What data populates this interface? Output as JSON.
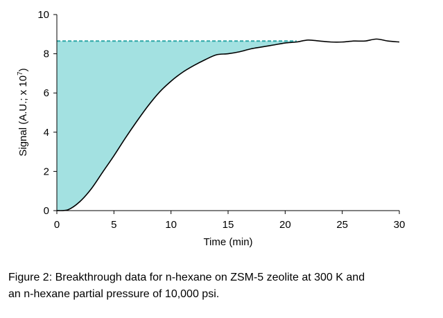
{
  "chart_data": {
    "type": "line",
    "xlabel": "Time (min)",
    "ylabel_text": "Signal (A.U.; x 10",
    "ylabel_superscript": "7",
    "ylabel_close": ")",
    "xlim": [
      0,
      30
    ],
    "ylim": [
      0,
      10
    ],
    "x_ticks": [
      "0",
      "5",
      "10",
      "15",
      "20",
      "25",
      "30"
    ],
    "y_ticks": [
      "0",
      "2",
      "4",
      "6",
      "8",
      "10"
    ],
    "grid": false,
    "legend": "none",
    "series": [
      {
        "x": [
          0,
          1,
          2,
          3,
          4,
          5,
          6,
          7,
          8,
          9,
          10,
          11,
          12,
          13,
          14,
          15,
          16,
          17,
          18,
          19,
          20,
          21,
          22,
          23,
          24,
          25,
          26,
          27,
          28,
          29,
          30
        ],
        "values": [
          0,
          0.05,
          0.45,
          1.1,
          1.95,
          2.8,
          3.7,
          4.55,
          5.35,
          6.05,
          6.6,
          7.05,
          7.4,
          7.7,
          7.95,
          8.0,
          8.1,
          8.25,
          8.35,
          8.45,
          8.55,
          8.6,
          8.7,
          8.65,
          8.6,
          8.6,
          8.65,
          8.65,
          8.75,
          8.65,
          8.6
        ]
      }
    ],
    "reference_line": {
      "y": 8.65,
      "x_start": 0,
      "x_end": 21
    },
    "colors": {
      "line": "#000000",
      "fill": "#a3e1e1",
      "dashed": "#2aa6a6",
      "axis": "#000000"
    }
  },
  "caption": {
    "line1": "Figure 2: Breakthrough data for n-hexane on ZSM-5 zeolite at 300 K and",
    "line2": "an n-hexane partial pressure of 10,000 psi."
  }
}
